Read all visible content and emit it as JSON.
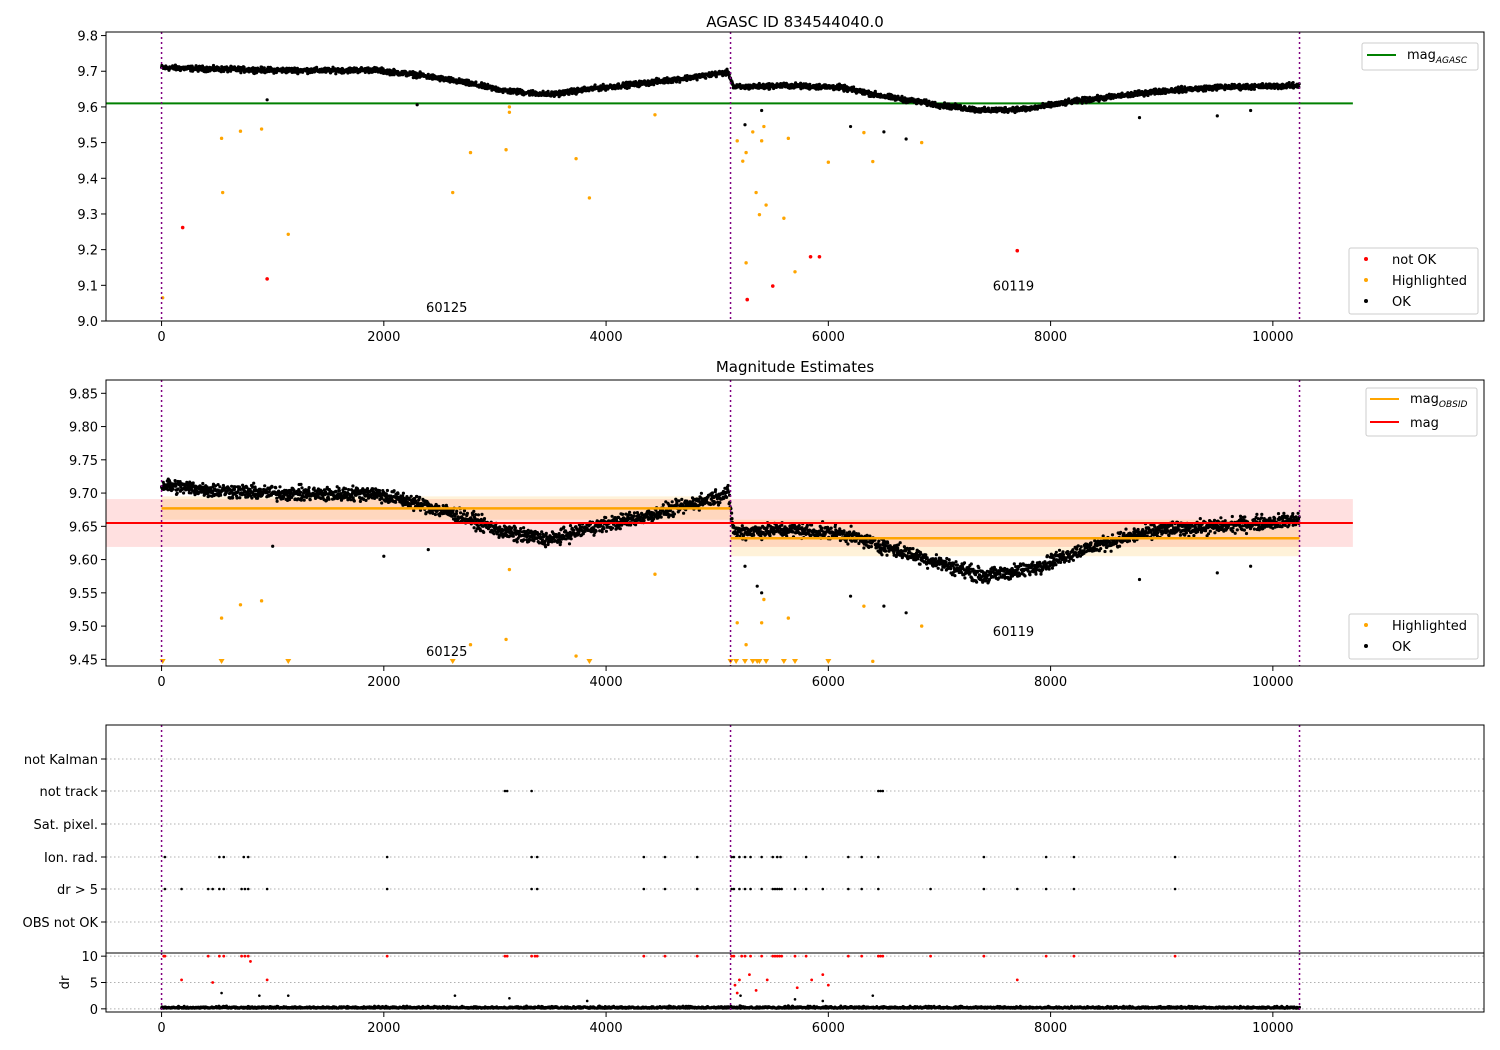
{
  "chart_data": [
    {
      "type": "scatter",
      "title": "AGASC ID 834544040.0",
      "xlim": [
        -500,
        11900
      ],
      "ylim": [
        9.0,
        9.81
      ],
      "x_ticks": [
        0,
        2000,
        4000,
        6000,
        8000,
        10000
      ],
      "y_ticks": [
        9.0,
        9.1,
        9.2,
        9.3,
        9.4,
        9.5,
        9.6,
        9.7,
        9.8
      ],
      "vlines": [
        0,
        5120,
        10240
      ],
      "hline": {
        "name": "mag_AGASC",
        "value": 9.61,
        "x": [
          -500,
          10720
        ],
        "color": "#008000"
      },
      "annotations": [
        {
          "text": "60125",
          "x": 2380,
          "y": 9.025
        },
        {
          "text": "60119",
          "x": 7480,
          "y": 9.085
        }
      ],
      "ok_trend": [
        [
          0,
          9.71
        ],
        [
          500,
          9.706
        ],
        [
          1000,
          9.703
        ],
        [
          1500,
          9.702
        ],
        [
          1900,
          9.704
        ],
        [
          2300,
          9.69
        ],
        [
          2700,
          9.67
        ],
        [
          3100,
          9.645
        ],
        [
          3500,
          9.635
        ],
        [
          3900,
          9.652
        ],
        [
          4300,
          9.665
        ],
        [
          4700,
          9.68
        ],
        [
          5100,
          9.697
        ],
        [
          5150,
          9.655
        ],
        [
          5600,
          9.66
        ],
        [
          6100,
          9.655
        ],
        [
          6500,
          9.63
        ],
        [
          7000,
          9.605
        ],
        [
          7400,
          9.59
        ],
        [
          7800,
          9.595
        ],
        [
          8200,
          9.615
        ],
        [
          8600,
          9.63
        ],
        [
          9000,
          9.645
        ],
        [
          9500,
          9.655
        ],
        [
          10240,
          9.66
        ]
      ],
      "series": [
        {
          "name": "not OK",
          "color": "#ff0000",
          "points": [
            [
              190,
              9.262
            ],
            [
              950,
              9.118
            ],
            [
              5270,
              9.06
            ],
            [
              5500,
              9.098
            ],
            [
              5840,
              9.18
            ],
            [
              5920,
              9.18
            ],
            [
              7700,
              9.197
            ]
          ]
        },
        {
          "name": "Highlighted",
          "color": "#ffa500",
          "points": [
            [
              10,
              9.065
            ],
            [
              540,
              9.512
            ],
            [
              550,
              9.36
            ],
            [
              710,
              9.532
            ],
            [
              900,
              9.538
            ],
            [
              1140,
              9.243
            ],
            [
              2620,
              9.36
            ],
            [
              2780,
              9.472
            ],
            [
              3100,
              9.48
            ],
            [
              3130,
              9.585
            ],
            [
              3130,
              9.6
            ],
            [
              3730,
              9.455
            ],
            [
              3850,
              9.345
            ],
            [
              4440,
              9.578
            ],
            [
              5180,
              9.505
            ],
            [
              5230,
              9.448
            ],
            [
              5260,
              9.472
            ],
            [
              5260,
              9.163
            ],
            [
              5320,
              9.53
            ],
            [
              5350,
              9.36
            ],
            [
              5380,
              9.298
            ],
            [
              5400,
              9.505
            ],
            [
              5420,
              9.545
            ],
            [
              5440,
              9.325
            ],
            [
              5600,
              9.288
            ],
            [
              5640,
              9.512
            ],
            [
              5700,
              9.138
            ],
            [
              6000,
              9.445
            ],
            [
              6320,
              9.528
            ],
            [
              6400,
              9.447
            ],
            [
              6840,
              9.5
            ]
          ]
        },
        {
          "name": "OK",
          "color": "#000000",
          "outliers": [
            [
              950,
              9.62
            ],
            [
              2300,
              9.606
            ],
            [
              5250,
              9.55
            ],
            [
              5400,
              9.59
            ],
            [
              6200,
              9.545
            ],
            [
              6500,
              9.53
            ],
            [
              6700,
              9.51
            ],
            [
              7700,
              9.6
            ],
            [
              8800,
              9.57
            ],
            [
              9500,
              9.575
            ],
            [
              9800,
              9.59
            ]
          ]
        }
      ],
      "legend_upper": [
        "mag_AGASC"
      ],
      "legend_lower": [
        "not OK",
        "Highlighted",
        "OK"
      ],
      "legend_upper_loc": "upper-right",
      "legend_lower_loc": "lower-right"
    },
    {
      "type": "scatter",
      "title": "Magnitude Estimates",
      "xlim": [
        -500,
        11900
      ],
      "ylim": [
        9.44,
        9.87
      ],
      "x_ticks": [
        0,
        2000,
        4000,
        6000,
        8000,
        10000
      ],
      "y_ticks": [
        9.45,
        9.5,
        9.55,
        9.6,
        9.65,
        9.7,
        9.75,
        9.8,
        9.85
      ],
      "vlines": [
        0,
        5120,
        10240
      ],
      "mag_line": {
        "name": "mag",
        "value": 9.655,
        "band": [
          9.619,
          9.691
        ],
        "x": [
          -500,
          10720
        ],
        "color": "#ff0000"
      },
      "obsid_segments": [
        {
          "x": [
            0,
            5120
          ],
          "value": 9.677,
          "band": [
            9.66,
            9.695
          ]
        },
        {
          "x": [
            5120,
            10240
          ],
          "value": 9.632,
          "band": [
            9.605,
            9.66
          ]
        }
      ],
      "annotations": [
        {
          "text": "60125",
          "x": 2380,
          "y": 9.455
        },
        {
          "text": "60119",
          "x": 7480,
          "y": 9.485
        }
      ],
      "ok_trend": [
        [
          0,
          9.712
        ],
        [
          500,
          9.704
        ],
        [
          1000,
          9.7
        ],
        [
          1500,
          9.698
        ],
        [
          1900,
          9.7
        ],
        [
          2300,
          9.685
        ],
        [
          2700,
          9.665
        ],
        [
          3100,
          9.64
        ],
        [
          3500,
          9.63
        ],
        [
          3900,
          9.65
        ],
        [
          4300,
          9.663
        ],
        [
          4700,
          9.68
        ],
        [
          5100,
          9.7
        ],
        [
          5150,
          9.642
        ],
        [
          5600,
          9.645
        ],
        [
          6100,
          9.64
        ],
        [
          6500,
          9.62
        ],
        [
          7000,
          9.595
        ],
        [
          7400,
          9.575
        ],
        [
          7800,
          9.585
        ],
        [
          8200,
          9.61
        ],
        [
          8600,
          9.63
        ],
        [
          9000,
          9.645
        ],
        [
          9500,
          9.65
        ],
        [
          10240,
          9.66
        ]
      ],
      "series": [
        {
          "name": "Highlighted",
          "color": "#ffa500",
          "points": [
            [
              540,
              9.512
            ],
            [
              710,
              9.532
            ],
            [
              900,
              9.538
            ],
            [
              2780,
              9.472
            ],
            [
              3100,
              9.48
            ],
            [
              3130,
              9.585
            ],
            [
              3730,
              9.455
            ],
            [
              4440,
              9.578
            ],
            [
              5180,
              9.505
            ],
            [
              5260,
              9.472
            ],
            [
              5420,
              9.54
            ],
            [
              5400,
              9.505
            ],
            [
              5640,
              9.512
            ],
            [
              6320,
              9.53
            ],
            [
              6400,
              9.447
            ],
            [
              6840,
              9.5
            ]
          ]
        },
        {
          "name": "Highlighted (clipped)",
          "color": "#ffa500",
          "clipped_x": [
            10,
            540,
            1140,
            2620,
            3850,
            5120,
            5170,
            5250,
            5320,
            5360,
            5380,
            5440,
            5600,
            5700,
            6000
          ]
        },
        {
          "name": "OK",
          "color": "#000000",
          "outliers": [
            [
              1000,
              9.62
            ],
            [
              2000,
              9.605
            ],
            [
              2400,
              9.615
            ],
            [
              5250,
              9.59
            ],
            [
              5360,
              9.56
            ],
            [
              5400,
              9.55
            ],
            [
              6200,
              9.545
            ],
            [
              6500,
              9.53
            ],
            [
              6700,
              9.52
            ],
            [
              8800,
              9.57
            ],
            [
              9500,
              9.58
            ],
            [
              9800,
              9.59
            ]
          ]
        }
      ],
      "legend_upper": [
        "mag_OBSID",
        "mag"
      ],
      "legend_lower": [
        "Highlighted",
        "OK"
      ],
      "legend_upper_loc": "upper-right",
      "legend_lower_loc": "lower-right"
    },
    {
      "type": "scatter",
      "title": "",
      "xlim": [
        -500,
        11900
      ],
      "categories": [
        "not Kalman",
        "not track",
        "Sat. pixel.",
        "Ion. rad.",
        "dr > 5",
        "OBS not OK"
      ],
      "flags": {
        "not track": [
          3090,
          3110,
          3330,
          6450,
          6470,
          6490
        ],
        "Ion. rad.": [
          30,
          520,
          560,
          740,
          780,
          2030,
          3330,
          3380,
          4340,
          4530,
          4820,
          5130,
          5150,
          5200,
          5250,
          5300,
          5400,
          5500,
          5540,
          5570,
          5800,
          6180,
          6300,
          6450,
          7400,
          7960,
          8210,
          9120
        ],
        "dr > 5": [
          30,
          180,
          420,
          460,
          520,
          560,
          720,
          750,
          780,
          950,
          2030,
          3330,
          3380,
          4340,
          4530,
          4820,
          5130,
          5150,
          5200,
          5250,
          5300,
          5400,
          5500,
          5520,
          5540,
          5560,
          5580,
          5700,
          5800,
          5950,
          6180,
          6300,
          6450,
          6920,
          7400,
          7700,
          7960,
          8210,
          9120
        ]
      }
    },
    {
      "type": "scatter",
      "title": "",
      "ylabel": "dr",
      "xlim": [
        -500,
        11900
      ],
      "ylim": [
        -0.6,
        10.6
      ],
      "x_ticks": [
        0,
        2000,
        4000,
        6000,
        8000,
        10000
      ],
      "y_ticks": [
        0,
        5,
        10
      ],
      "vlines": [
        0,
        5120,
        10240
      ],
      "red_points": [
        [
          20,
          10
        ],
        [
          30,
          10
        ],
        [
          180,
          5.5
        ],
        [
          420,
          10
        ],
        [
          460,
          5
        ],
        [
          520,
          10
        ],
        [
          560,
          10
        ],
        [
          720,
          10
        ],
        [
          750,
          10
        ],
        [
          780,
          10
        ],
        [
          800,
          9
        ],
        [
          950,
          5.5
        ],
        [
          2030,
          10
        ],
        [
          3090,
          10
        ],
        [
          3110,
          10
        ],
        [
          3330,
          10
        ],
        [
          3360,
          10
        ],
        [
          3380,
          10
        ],
        [
          4340,
          10
        ],
        [
          4530,
          10
        ],
        [
          4820,
          10
        ],
        [
          5130,
          10
        ],
        [
          5150,
          10
        ],
        [
          5160,
          4.5
        ],
        [
          5180,
          3
        ],
        [
          5200,
          5.5
        ],
        [
          5220,
          10
        ],
        [
          5250,
          10
        ],
        [
          5290,
          6.5
        ],
        [
          5300,
          10
        ],
        [
          5350,
          3.5
        ],
        [
          5400,
          10
        ],
        [
          5450,
          5.5
        ],
        [
          5500,
          10
        ],
        [
          5520,
          10
        ],
        [
          5540,
          10
        ],
        [
          5560,
          10
        ],
        [
          5580,
          10
        ],
        [
          5700,
          10
        ],
        [
          5720,
          4
        ],
        [
          5800,
          10
        ],
        [
          5850,
          5.5
        ],
        [
          5950,
          6.5
        ],
        [
          6000,
          4.5
        ],
        [
          6180,
          10
        ],
        [
          6300,
          10
        ],
        [
          6450,
          10
        ],
        [
          6470,
          10
        ],
        [
          6490,
          10
        ],
        [
          6920,
          10
        ],
        [
          7400,
          10
        ],
        [
          7700,
          5.5
        ],
        [
          7960,
          10
        ],
        [
          8210,
          10
        ],
        [
          9120,
          10
        ]
      ],
      "black_points": [
        [
          540,
          3
        ],
        [
          880,
          2.5
        ],
        [
          1140,
          2.5
        ],
        [
          2640,
          2.5
        ],
        [
          3130,
          2
        ],
        [
          3830,
          1.5
        ],
        [
          5210,
          2.5
        ],
        [
          5700,
          1.8
        ],
        [
          5950,
          1.5
        ],
        [
          6400,
          2.5
        ]
      ]
    }
  ]
}
